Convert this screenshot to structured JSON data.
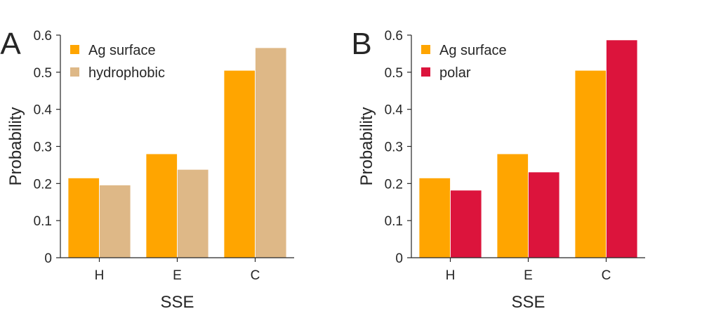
{
  "chart_data": [
    {
      "panel_label": "A",
      "type": "bar",
      "categories": [
        "H",
        "E",
        "C"
      ],
      "series": [
        {
          "name": "Ag surface",
          "color": "#FFA500",
          "values": [
            0.215,
            0.28,
            0.505
          ]
        },
        {
          "name": "hydrophobic",
          "color": "#DEB887",
          "values": [
            0.196,
            0.238,
            0.566
          ]
        }
      ],
      "xlabel": "SSE",
      "ylabel": "Probability",
      "ylim": [
        0,
        0.6
      ],
      "yticks": [
        "0",
        "0.1",
        "0.2",
        "0.3",
        "0.4",
        "0.5",
        "0.6"
      ],
      "grid": false,
      "legend_position": "top-left"
    },
    {
      "panel_label": "B",
      "type": "bar",
      "categories": [
        "H",
        "E",
        "C"
      ],
      "series": [
        {
          "name": "Ag surface",
          "color": "#FFA500",
          "values": [
            0.215,
            0.28,
            0.505
          ]
        },
        {
          "name": "polar",
          "color": "#DC143C",
          "values": [
            0.182,
            0.231,
            0.587
          ]
        }
      ],
      "xlabel": "SSE",
      "ylabel": "Probability",
      "ylim": [
        0,
        0.6
      ],
      "yticks": [
        "0",
        "0.1",
        "0.2",
        "0.3",
        "0.4",
        "0.5",
        "0.6"
      ],
      "grid": false,
      "legend_position": "top-left"
    }
  ]
}
